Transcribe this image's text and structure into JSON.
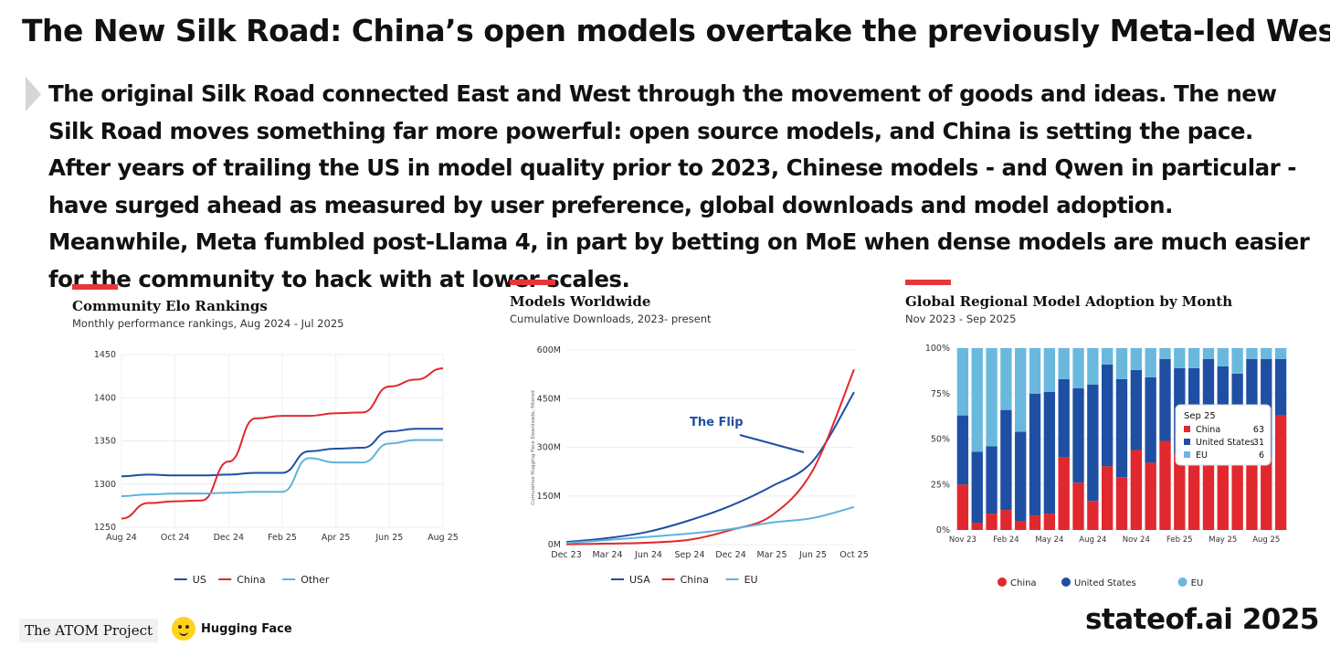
{
  "page": {
    "title": "The New Silk Road: China’s open models overtake the previously Meta-led West",
    "quote": "The original Silk Road connected East and West through the movement of goods and ideas. The new Silk Road moves something far more powerful: open source models, and China is setting the pace. After years of trailing the US in model quality prior to 2023, Chinese models - and Qwen in particular - have surged ahead as measured by user preference, global downloads and model adoption. Meanwhile, Meta fumbled post-Llama 4, in part by betting on MoE when dense models are much easier for the community to hack with at lower scales.",
    "accent_color": "#e5373a"
  },
  "footer": {
    "atom_label": "The ATOM Project",
    "hf_label": "Hugging Face",
    "brand": "stateof.ai 2025"
  },
  "chart_data": [
    {
      "type": "line",
      "title": "Community Elo Rankings",
      "subtitle": "Monthly performance rankings, Aug 2024 - Jul 2025",
      "x": [
        "Aug 24",
        "Sep 24",
        "Oct 24",
        "Nov 24",
        "Dec 24",
        "Jan 25",
        "Feb 25",
        "Mar 25",
        "Apr 25",
        "May 25",
        "Jun 25",
        "Jul 25",
        "Aug 25"
      ],
      "xticks": [
        "Aug 24",
        "Oct 24",
        "Dec 24",
        "Feb 25",
        "Apr 25",
        "Jun 25",
        "Aug 25"
      ],
      "ylim": [
        1250,
        1450
      ],
      "yticks": [
        1250,
        1300,
        1350,
        1400,
        1450
      ],
      "series": [
        {
          "name": "US",
          "color": "#1f4fa3",
          "values": [
            1309,
            1311,
            1310,
            1310,
            1311,
            1313,
            1313,
            1338,
            1341,
            1342,
            1361,
            1364,
            1364
          ]
        },
        {
          "name": "China",
          "color": "#e0282e",
          "values": [
            1260,
            1278,
            1280,
            1281,
            1326,
            1376,
            1379,
            1379,
            1382,
            1383,
            1413,
            1421,
            1434
          ]
        },
        {
          "name": "Other",
          "color": "#5fb3dc",
          "values": [
            1286,
            1288,
            1289,
            1289,
            1290,
            1291,
            1291,
            1330,
            1325,
            1325,
            1347,
            1351,
            1351
          ]
        }
      ]
    },
    {
      "type": "line",
      "title": "Models Worldwide",
      "subtitle": "Cumulative Downloads, 2023- present",
      "ylabel": "Cumulative Hugging Face Downloads, filtered",
      "x": [
        "Dec 23",
        "Mar 24",
        "Jun 24",
        "Sep 24",
        "Dec 24",
        "Mar 25",
        "Jun 25",
        "Oct 25"
      ],
      "ylim": [
        0,
        600
      ],
      "yticks": [
        "0M",
        "150M",
        "300M",
        "450M",
        "600M"
      ],
      "annotation": "The Flip",
      "series": [
        {
          "name": "USA",
          "color": "#1f4fa3",
          "values": [
            8,
            20,
            40,
            75,
            120,
            180,
            258,
            470
          ]
        },
        {
          "name": "China",
          "color": "#e0282e",
          "values": [
            1,
            3,
            6,
            15,
            45,
            90,
            230,
            540
          ]
        },
        {
          "name": "EU",
          "color": "#5fb3dc",
          "values": [
            5,
            14,
            24,
            34,
            48,
            68,
            82,
            116
          ]
        }
      ]
    },
    {
      "type": "bar",
      "stacked": true,
      "title": "Global Regional Model Adoption by Month",
      "subtitle": "Nov 2023 - Sep 2025",
      "categories": [
        "Nov 23",
        "Dec 23",
        "Jan 24",
        "Feb 24",
        "Mar 24",
        "Apr 24",
        "May 24",
        "Jun 24",
        "Jul 24",
        "Aug 24",
        "Sep 24",
        "Oct 24",
        "Nov 24",
        "Dec 24",
        "Jan 25",
        "Feb 25",
        "Mar 25",
        "Apr 25",
        "May 25",
        "Jun 25",
        "Jul 25",
        "Aug 25",
        "Sep 25"
      ],
      "xticks": [
        "Nov 23",
        "Feb 24",
        "May 24",
        "Aug 24",
        "Nov 24",
        "Feb 25",
        "May 25",
        "Aug 25"
      ],
      "yticks": [
        "0%",
        "25%",
        "50%",
        "75%",
        "100%"
      ],
      "ylim": [
        0,
        100
      ],
      "series": [
        {
          "name": "China",
          "color": "#e0282e",
          "values": [
            25,
            4,
            9,
            11,
            5,
            8,
            9,
            40,
            26,
            16,
            35,
            29,
            44,
            37,
            49,
            42,
            42,
            46,
            45,
            43,
            42,
            40,
            63
          ]
        },
        {
          "name": "United States",
          "color": "#1f4fa3",
          "values": [
            38,
            39,
            37,
            55,
            49,
            67,
            67,
            43,
            52,
            64,
            56,
            54,
            44,
            47,
            45,
            47,
            47,
            48,
            45,
            43,
            52,
            54,
            31
          ]
        },
        {
          "name": "EU",
          "color": "#6ab8de",
          "values": [
            37,
            57,
            54,
            34,
            46,
            25,
            24,
            17,
            22,
            20,
            9,
            17,
            12,
            16,
            6,
            11,
            11,
            6,
            10,
            14,
            6,
            6,
            6
          ]
        }
      ],
      "tooltip": {
        "title": "Sep 25",
        "rows": [
          {
            "label": "China",
            "value": "63"
          },
          {
            "label": "United States",
            "value": "31"
          },
          {
            "label": "EU",
            "value": "6"
          }
        ]
      }
    }
  ]
}
